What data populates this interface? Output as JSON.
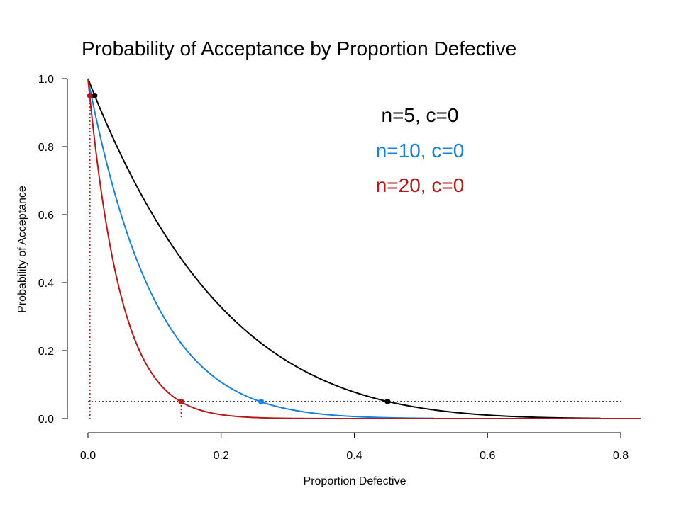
{
  "chart_data": {
    "type": "line",
    "title": "Probability of Acceptance by Proportion Defective",
    "xlabel": "Proportion Defective",
    "ylabel": "Probability of Acceptance",
    "xlim": [
      0,
      0.8
    ],
    "ylim": [
      0,
      1
    ],
    "x_ticks": [
      "0.0",
      "0.2",
      "0.4",
      "0.6",
      "0.8"
    ],
    "y_ticks": [
      "0.0",
      "0.2",
      "0.4",
      "0.6",
      "0.8",
      "1.0"
    ],
    "grid": false,
    "legend_position": "top-right",
    "reference_level": 0.05,
    "series": [
      {
        "name": "n=5, c=0",
        "n": 5,
        "color": "#000000",
        "x_max": 0.77,
        "points": [
          {
            "x": 0.01,
            "y": 0.95
          },
          {
            "x": 0.45,
            "y": 0.05
          }
        ]
      },
      {
        "name": "n=10, c=0",
        "n": 10,
        "color": "#1a80d9",
        "x_max": 0.52,
        "points": [
          {
            "x": 0.26,
            "y": 0.05
          }
        ]
      },
      {
        "name": "n=20, c=0",
        "n": 20,
        "color": "#b31a1a",
        "x_max": 0.83,
        "points": [
          {
            "x": 0.003,
            "y": 0.95
          },
          {
            "x": 0.14,
            "y": 0.05
          }
        ]
      }
    ]
  }
}
